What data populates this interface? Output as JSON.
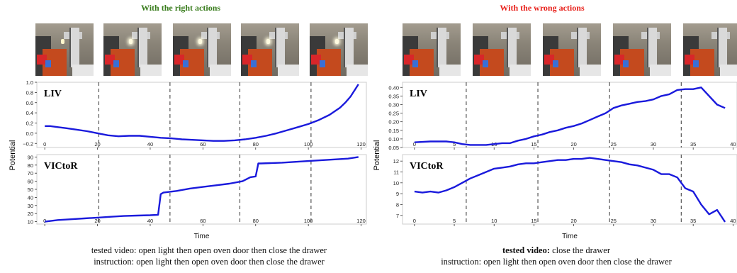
{
  "left": {
    "title": "With the right actions",
    "title_color": "#3a7d1e",
    "caption_line1_prefix": "tested video:  ",
    "caption_line1_text": "open light then open oven door then close the drawer",
    "caption_line2": "instruction: open light then open oven door then close the drawer"
  },
  "right": {
    "title": "With the wrong actions",
    "title_color": "#e8201a",
    "caption_line1_prefix": "tested video:",
    "caption_line1_text": "  close the drawer",
    "caption_line2": "instruction: open light then open oven door then close the drawer"
  },
  "shared": {
    "ylabel": "Potential",
    "xlabel": "Time"
  },
  "chart_data": [
    {
      "type": "line",
      "panel": "left",
      "name_label": "LIV",
      "xlim": [
        -3,
        122
      ],
      "ylim": [
        -0.28,
        1.0
      ],
      "xticks": [
        0,
        20,
        40,
        60,
        80,
        100,
        120
      ],
      "yticks": [
        -0.2,
        0.0,
        0.2,
        0.4,
        0.6,
        0.8,
        1.0
      ],
      "ytick_labels": [
        "−0.2",
        "0.0",
        "0.2",
        "0.4",
        "0.6",
        "0.8",
        "1.0"
      ],
      "vlines": [
        20.5,
        47.5,
        74,
        101
      ],
      "x": [
        0,
        2,
        5,
        8,
        12,
        16,
        20,
        24,
        28,
        32,
        36,
        40,
        44,
        48,
        52,
        56,
        60,
        64,
        68,
        72,
        76,
        80,
        84,
        88,
        92,
        96,
        100,
        104,
        108,
        112,
        114,
        116,
        118,
        119
      ],
      "y": [
        0.14,
        0.14,
        0.12,
        0.1,
        0.07,
        0.04,
        0.0,
        -0.04,
        -0.06,
        -0.05,
        -0.05,
        -0.07,
        -0.09,
        -0.1,
        -0.12,
        -0.13,
        -0.14,
        -0.15,
        -0.15,
        -0.14,
        -0.12,
        -0.09,
        -0.05,
        0.0,
        0.06,
        0.12,
        0.18,
        0.26,
        0.36,
        0.5,
        0.6,
        0.72,
        0.88,
        0.96
      ]
    },
    {
      "type": "line",
      "panel": "left",
      "name_label": "VICtoR",
      "xlim": [
        -3,
        122
      ],
      "ylim": [
        7,
        93
      ],
      "xticks": [
        0,
        20,
        40,
        60,
        80,
        100,
        120
      ],
      "yticks": [
        10,
        20,
        30,
        40,
        50,
        60,
        70,
        80,
        90
      ],
      "ytick_labels": [
        "10",
        "20",
        "30",
        "40",
        "50",
        "60",
        "70",
        "80",
        "90"
      ],
      "vlines": [
        20.5,
        47.5,
        74,
        101
      ],
      "x": [
        0,
        5,
        10,
        15,
        20,
        25,
        30,
        35,
        40,
        43,
        44,
        45,
        50,
        55,
        60,
        65,
        70,
        75,
        78,
        80,
        81,
        82,
        90,
        100,
        110,
        115,
        119
      ],
      "y": [
        10,
        12,
        13,
        14,
        15,
        16,
        17,
        17.5,
        18,
        18.5,
        44,
        46,
        48,
        51,
        53,
        55,
        57,
        60,
        65,
        66,
        82,
        82,
        83,
        85,
        87,
        88,
        90
      ]
    },
    {
      "type": "line",
      "panel": "right",
      "name_label": "LIV",
      "xlim": [
        -1.5,
        40.5
      ],
      "ylim": [
        0.05,
        0.43
      ],
      "xticks": [
        0,
        5,
        10,
        15,
        20,
        25,
        30,
        35,
        40
      ],
      "yticks": [
        0.05,
        0.1,
        0.15,
        0.2,
        0.25,
        0.3,
        0.35,
        0.4
      ],
      "ytick_labels": [
        "0.05",
        "0.10",
        "0.15",
        "0.20",
        "0.25",
        "0.30",
        "0.35",
        "0.40"
      ],
      "vlines": [
        6.5,
        15.5,
        24.5,
        33.5
      ],
      "x": [
        0,
        2,
        4,
        5,
        6,
        7,
        8,
        9,
        10,
        11,
        12,
        13,
        14,
        15,
        16,
        17,
        18,
        19,
        20,
        21,
        22,
        23,
        24,
        25,
        26,
        27,
        28,
        29,
        30,
        31,
        32,
        33,
        34,
        35,
        36,
        38,
        39
      ],
      "y": [
        0.08,
        0.085,
        0.085,
        0.08,
        0.07,
        0.065,
        0.065,
        0.065,
        0.07,
        0.075,
        0.075,
        0.09,
        0.1,
        0.115,
        0.125,
        0.14,
        0.15,
        0.165,
        0.175,
        0.19,
        0.21,
        0.23,
        0.25,
        0.28,
        0.295,
        0.305,
        0.315,
        0.32,
        0.33,
        0.35,
        0.36,
        0.385,
        0.39,
        0.39,
        0.4,
        0.3,
        0.28
      ]
    },
    {
      "type": "line",
      "panel": "right",
      "name_label": "VICtoR",
      "xlim": [
        -1.5,
        40.5
      ],
      "ylim": [
        6.2,
        12.6
      ],
      "xticks": [
        0,
        5,
        10,
        15,
        20,
        25,
        30,
        35,
        40
      ],
      "yticks": [
        7,
        8,
        9,
        10,
        11,
        12
      ],
      "ytick_labels": [
        "7",
        "8",
        "9",
        "10",
        "11",
        "12"
      ],
      "vlines": [
        6.5,
        15.5,
        24.5,
        33.5
      ],
      "x": [
        0,
        1,
        2,
        3,
        4,
        5,
        6,
        7,
        8,
        9,
        10,
        11,
        12,
        13,
        14,
        15,
        16,
        17,
        18,
        19,
        20,
        21,
        22,
        23,
        24,
        25,
        26,
        27,
        28,
        29,
        30,
        31,
        32,
        33,
        34,
        35,
        36,
        37,
        38,
        39
      ],
      "y": [
        9.2,
        9.1,
        9.2,
        9.1,
        9.3,
        9.6,
        10.0,
        10.4,
        10.7,
        11.0,
        11.3,
        11.4,
        11.5,
        11.7,
        11.8,
        11.8,
        11.9,
        12.0,
        12.1,
        12.1,
        12.2,
        12.2,
        12.3,
        12.2,
        12.1,
        12.0,
        11.9,
        11.7,
        11.6,
        11.4,
        11.2,
        10.8,
        10.8,
        10.5,
        9.5,
        9.2,
        8.0,
        7.1,
        7.5,
        6.4
      ]
    }
  ]
}
